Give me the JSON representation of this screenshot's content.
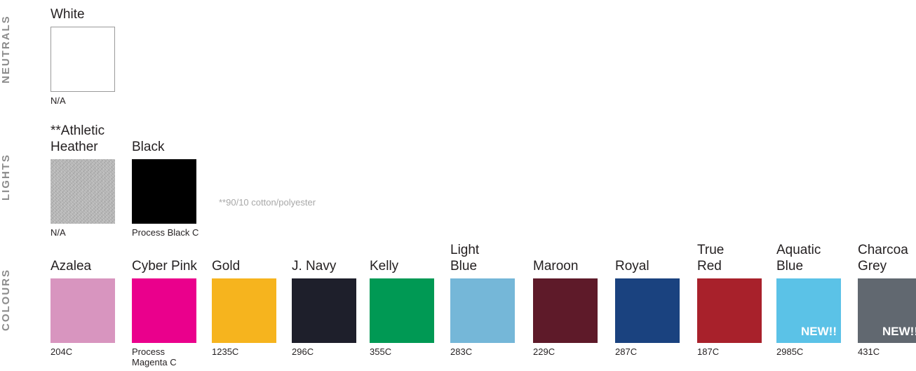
{
  "sections": {
    "neutrals": "NEUTRALS",
    "lights": "LIGHTS",
    "colours": "COLOURS"
  },
  "neutrals": [
    {
      "name": "White",
      "code": "N/A",
      "hex": "#ffffff"
    }
  ],
  "lights": [
    {
      "name": "**Athletic\nHeather",
      "code": "N/A",
      "hex": "#b5b5b5",
      "texture": "heather"
    },
    {
      "name": "Black",
      "code": "Process Black C",
      "hex": "#000000"
    }
  ],
  "note": "**90/10 cotton/polyester",
  "colours": [
    {
      "name": "Azalea",
      "code": "204C",
      "hex": "#d895bf"
    },
    {
      "name": "Cyber Pink",
      "code": "Process\nMagenta C",
      "hex": "#ea008c"
    },
    {
      "name": "Gold",
      "code": "1235C",
      "hex": "#f6b41e"
    },
    {
      "name": "J. Navy",
      "code": "296C",
      "hex": "#1e1f2b"
    },
    {
      "name": "Kelly",
      "code": "355C",
      "hex": "#009954"
    },
    {
      "name": "Light\nBlue",
      "code": "283C",
      "hex": "#75b7d8"
    },
    {
      "name": "Maroon",
      "code": "229C",
      "hex": "#5e1a29"
    },
    {
      "name": "Royal",
      "code": "287C",
      "hex": "#1a427f"
    },
    {
      "name": "True\nRed",
      "code": "187C",
      "hex": "#a8212b"
    },
    {
      "name": "Aquatic\nBlue",
      "code": "2985C",
      "hex": "#5bc2e7",
      "badge": "NEW!!"
    },
    {
      "name": "Charcoa\nGrey",
      "code": "431C",
      "hex": "#616870",
      "badge": "NEW!!"
    }
  ]
}
